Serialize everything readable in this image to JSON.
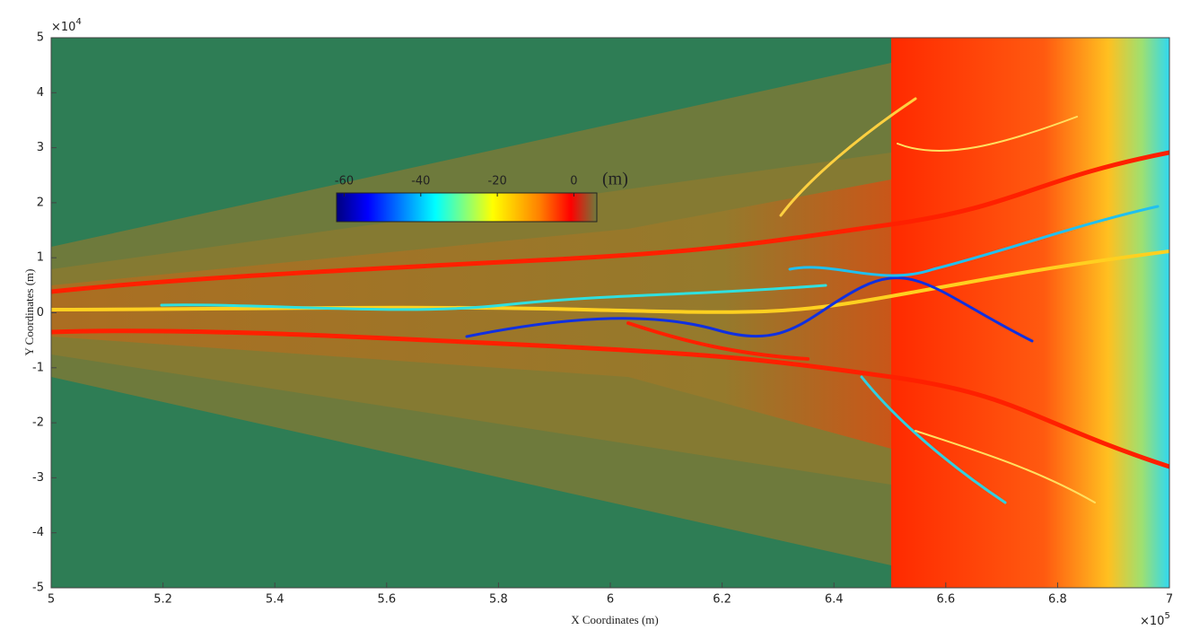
{
  "chart_data": {
    "type": "heatmap",
    "x_label": "X Coordinates (m)",
    "y_label": "Y Coordinates (m)",
    "xlim": [
      5,
      7
    ],
    "xticks": [
      5,
      5.2,
      5.4,
      5.6,
      5.8,
      6,
      6.2,
      6.4,
      6.6,
      6.8,
      7
    ],
    "x_multiplier": {
      "base": "×10",
      "exponent": "5"
    },
    "ylim": [
      -5,
      5
    ],
    "yticks": [
      -5,
      -4,
      -3,
      -2,
      -1,
      0,
      1,
      2,
      3,
      4,
      5
    ],
    "y_multiplier": {
      "base": "×10",
      "exponent": "4"
    },
    "colorbar": {
      "clim": [
        -62,
        6
      ],
      "ticks": [
        -60,
        -40,
        -20,
        0
      ],
      "unit": "(m)",
      "colors": [
        "#00007f",
        "#0000ff",
        "#00ffff",
        "#ffff00",
        "#ff8000",
        "#ff0000",
        "#6e7a3c"
      ]
    }
  }
}
